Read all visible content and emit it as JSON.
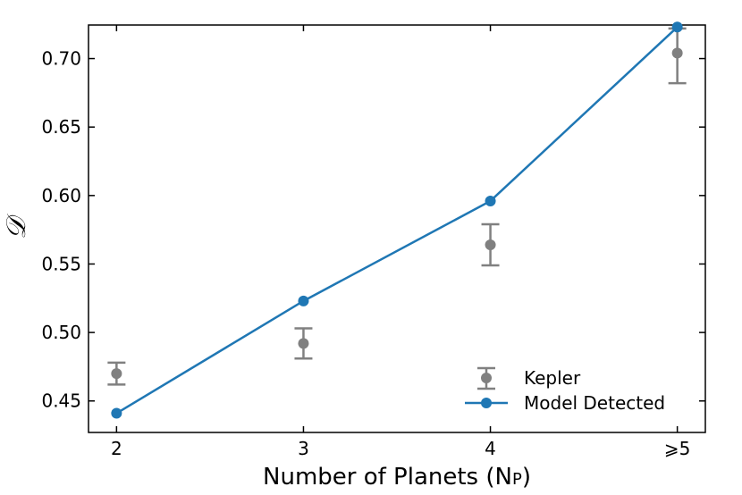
{
  "chart_data": {
    "type": "line",
    "categories": [
      "2",
      "3",
      "4",
      "⩾5"
    ],
    "x": [
      2,
      3,
      4,
      5
    ],
    "xlabel": "Number of Planets (N",
    "xlabel_sub": "P",
    "xlabel_end": ")",
    "ylabel": "𝒟",
    "xlim": [
      1.85,
      5.15
    ],
    "ylim": [
      0.427,
      0.7245
    ],
    "yticks": [
      0.45,
      0.5,
      0.55,
      0.6,
      0.65,
      0.7
    ],
    "ytick_labels": [
      "0.45",
      "0.50",
      "0.55",
      "0.60",
      "0.65",
      "0.70"
    ],
    "grid": false,
    "legend_position": "lower-right",
    "series": [
      {
        "name": "Kepler",
        "kind": "errorbar",
        "color": "#808080",
        "values": [
          0.47,
          0.492,
          0.564,
          0.704
        ],
        "err_low": [
          0.008,
          0.011,
          0.015,
          0.022
        ],
        "err_high": [
          0.008,
          0.011,
          0.015,
          0.018
        ]
      },
      {
        "name": "Model Detected",
        "kind": "line",
        "color": "#1f77b4",
        "values": [
          0.441,
          0.523,
          0.596,
          0.723
        ]
      }
    ]
  }
}
